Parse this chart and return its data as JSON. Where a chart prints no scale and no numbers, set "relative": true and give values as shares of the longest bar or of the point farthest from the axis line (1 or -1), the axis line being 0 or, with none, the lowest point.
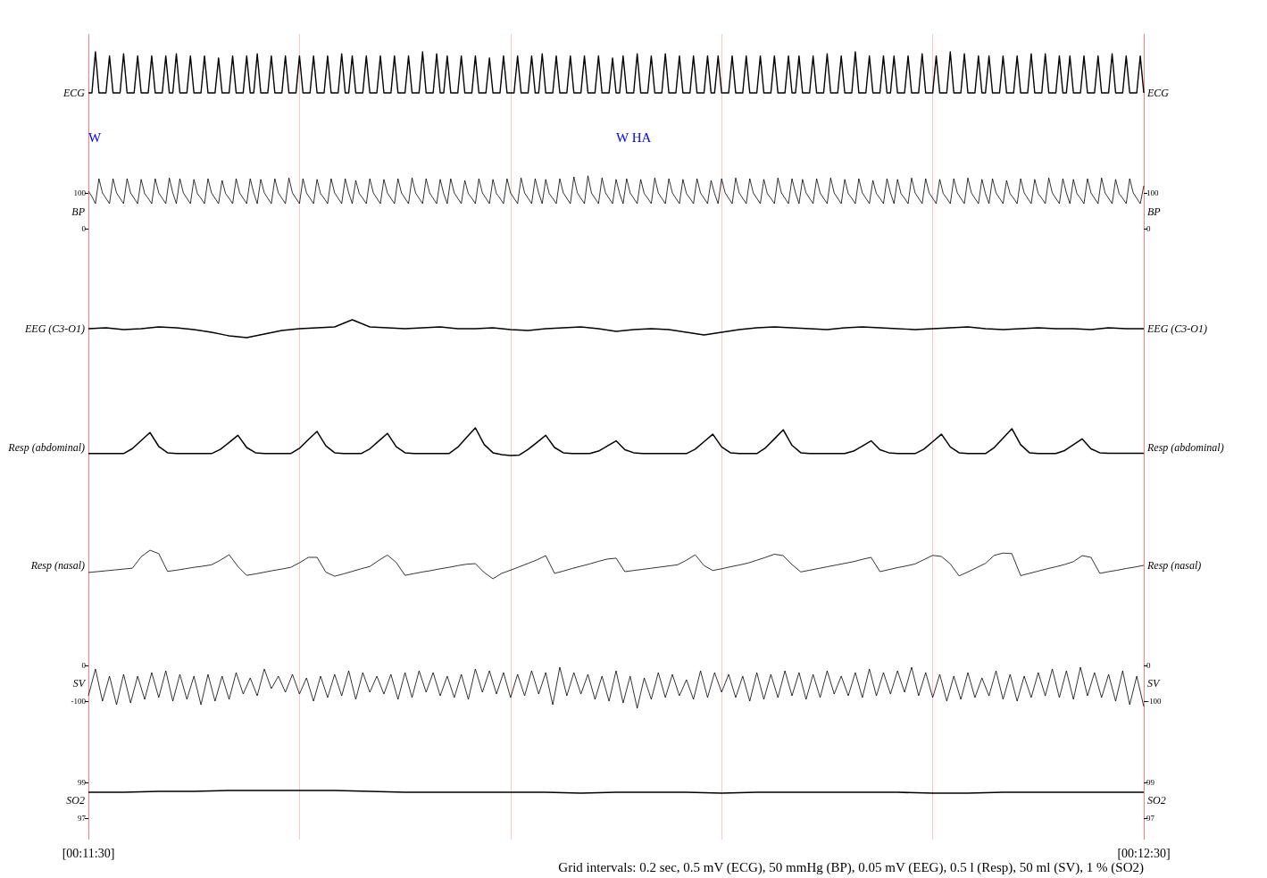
{
  "chart_data": [
    {
      "type": "line",
      "ylabel": "ECG",
      "y2label": "ECG",
      "relative": true,
      "grid": "x",
      "tick_labels": false,
      "color": "#000000",
      "categories": [
        null,
        null,
        null,
        null,
        null,
        null,
        null,
        null,
        null,
        null,
        null,
        null,
        null,
        null,
        null,
        null,
        null,
        null,
        null,
        null,
        null,
        null,
        null,
        null,
        null,
        null,
        null,
        null,
        null,
        null,
        null,
        null,
        null,
        null,
        null,
        null,
        null,
        null,
        null,
        null,
        null,
        null,
        null,
        null,
        null,
        null,
        null,
        null,
        null,
        null,
        null,
        null,
        null,
        null,
        null,
        null,
        null,
        null,
        null,
        null,
        null,
        null,
        null,
        null,
        null,
        null,
        null,
        null,
        null,
        null,
        null,
        null,
        null,
        null,
        null,
        null,
        null,
        null,
        null,
        null,
        null,
        null,
        null,
        null,
        null,
        null,
        null,
        null,
        null,
        null,
        null,
        null,
        null,
        null,
        null,
        null,
        null,
        null,
        null,
        null,
        null,
        null,
        null,
        null,
        null,
        null,
        null,
        null,
        null,
        null,
        null,
        null,
        null,
        null,
        null,
        null,
        null,
        null,
        null,
        null,
        null,
        null,
        null,
        null,
        null,
        null,
        null,
        null,
        null,
        null,
        null,
        null,
        null,
        null,
        null,
        null,
        null,
        null,
        null,
        null,
        null,
        null,
        null,
        null,
        null,
        null,
        null,
        null,
        null,
        null,
        null,
        null,
        null,
        null,
        null,
        null,
        null,
        null,
        null,
        null,
        null,
        null,
        null,
        null,
        null,
        null,
        null,
        null,
        null,
        null,
        null,
        null,
        null,
        null,
        null,
        null,
        null,
        null,
        null,
        null,
        null,
        null,
        null,
        null,
        null,
        null,
        null,
        null,
        null,
        null,
        null,
        null,
        null,
        null,
        null,
        null,
        null,
        null,
        null,
        null,
        null,
        null,
        null,
        null,
        null,
        null,
        null,
        null,
        null,
        null,
        null,
        null,
        null,
        null,
        null,
        null,
        null,
        null,
        null,
        null,
        null,
        null,
        null,
        null,
        null,
        null,
        null,
        null,
        null,
        null,
        null,
        null,
        null,
        null,
        null,
        null,
        null,
        null,
        null,
        null,
        null,
        null,
        null,
        null,
        null,
        null,
        null,
        null,
        null,
        null,
        null,
        null,
        null,
        null,
        null,
        null,
        null,
        null,
        null,
        null,
        null,
        null,
        null,
        null,
        null,
        null,
        null,
        null,
        null,
        null,
        null,
        null,
        null,
        null,
        null,
        null,
        null,
        null,
        null,
        null,
        null,
        null,
        null,
        null,
        null,
        null,
        null,
        null,
        null,
        null,
        null,
        null,
        null,
        null,
        null,
        null,
        null,
        null,
        null,
        null,
        null
      ],
      "values": [
        0,
        0,
        1,
        0,
        0,
        0,
        0.9,
        0,
        0,
        0,
        0.95,
        0,
        0,
        0,
        0.9,
        0,
        0,
        0,
        0.9,
        0,
        0,
        0,
        0.9,
        0,
        0,
        0.95,
        0,
        0,
        0,
        0.9,
        0,
        0,
        0,
        0.9,
        0,
        0,
        0,
        0.85,
        0,
        0,
        0,
        0.9,
        0,
        0,
        0,
        0.9,
        0,
        0,
        0.95,
        0,
        0,
        0,
        0.9,
        0,
        0,
        0,
        0.9,
        0,
        0,
        0,
        0.9,
        0,
        0,
        0,
        0.9,
        0,
        0,
        0,
        0.9,
        0,
        0,
        0,
        0.95,
        0,
        0,
        0.9,
        0,
        0,
        0,
        0.9,
        0,
        0,
        0,
        0.9,
        0,
        0,
        0,
        0.9,
        0,
        0,
        0,
        0.9,
        0,
        0,
        0,
        1,
        0,
        0,
        0,
        0.95,
        0,
        0,
        0.9,
        0,
        0,
        0,
        0.9,
        0,
        0,
        0,
        0.9,
        0,
        0,
        0,
        0.85,
        0,
        0,
        0,
        0.9,
        0,
        0,
        0,
        0.9,
        0,
        0,
        0,
        0.9,
        0,
        0,
        0.95,
        0,
        0,
        0,
        0.9,
        0,
        0,
        0,
        0.9,
        0,
        0,
        0,
        0.9,
        0,
        0,
        0,
        0.9,
        0,
        0,
        0,
        0.85,
        0,
        0,
        0.9,
        0,
        0,
        0,
        0.95,
        0,
        0,
        0,
        0.9,
        0,
        0,
        0,
        0.95,
        0,
        0,
        0,
        0.9,
        0,
        0,
        0,
        0.9,
        0,
        0,
        0,
        0.9,
        0,
        0,
        0.9,
        0,
        0,
        0,
        0.9,
        0,
        0,
        0,
        0.9,
        0,
        0,
        0,
        0.9,
        0,
        0,
        0,
        0.9,
        0,
        0,
        0,
        0.9,
        0,
        0,
        0.9,
        0,
        0,
        0,
        0.9,
        0,
        0,
        0,
        0.95,
        0,
        0,
        0,
        0.9,
        0,
        0,
        0,
        1,
        0,
        0,
        0,
        0.9,
        0,
        0,
        0,
        0.9,
        0,
        0,
        0.9,
        0,
        0,
        0,
        0.9,
        0,
        0,
        0,
        0.95,
        0,
        0,
        0,
        0.9,
        0,
        0,
        0,
        1,
        0,
        0,
        0,
        0.95,
        0,
        0,
        0,
        0.9,
        0,
        0,
        0.9,
        0,
        0,
        0,
        0.9,
        0,
        0,
        0,
        0.9,
        0,
        0,
        0,
        0.95,
        0,
        0,
        0,
        0.95,
        0,
        0,
        0,
        0.9,
        0,
        0,
        0.9,
        0,
        0,
        0,
        0.9,
        0,
        0,
        0,
        0.9,
        0,
        0,
        0,
        0.95,
        0,
        0,
        0,
        0.9,
        0,
        0,
        0,
        0.9,
        0
      ]
    },
    {
      "type": "line",
      "ylabel": "BP",
      "y2label": "BP",
      "grid": "x",
      "tick_labels": "y",
      "ylim": [
        -85,
        290
      ],
      "yticks": [
        0,
        100
      ],
      "y2lim": [
        -85,
        290
      ],
      "y2ticks": [
        0,
        100
      ],
      "color": "#000000",
      "annotations": [
        "W",
        "W HA"
      ],
      "categories": [
        null,
        null,
        null,
        null,
        null,
        null,
        null,
        null,
        null,
        null,
        null,
        null,
        null,
        null,
        null,
        null,
        null,
        null,
        null,
        null,
        null,
        null,
        null,
        null,
        null,
        null,
        null,
        null,
        null,
        null,
        null,
        null,
        null,
        null,
        null,
        null,
        null,
        null,
        null,
        null,
        null,
        null,
        null,
        null,
        null,
        null,
        null,
        null,
        null,
        null,
        null,
        null,
        null,
        null,
        null,
        null,
        null,
        null,
        null,
        null,
        null,
        null,
        null,
        null,
        null,
        null,
        null,
        null,
        null,
        null,
        null,
        null,
        null,
        null,
        null,
        null,
        null,
        null,
        null,
        null,
        null,
        null,
        null,
        null,
        null,
        null,
        null,
        null,
        null,
        null,
        null,
        null,
        null,
        null,
        null,
        null,
        null,
        null,
        null,
        null,
        null,
        null,
        null,
        null,
        null,
        null,
        null,
        null,
        null,
        null,
        null,
        null,
        null,
        null,
        null,
        null,
        null,
        null,
        null,
        null,
        null,
        null,
        null,
        null,
        null,
        null,
        null,
        null,
        null,
        null,
        null,
        null,
        null,
        null,
        null,
        null,
        null,
        null,
        null,
        null,
        null,
        null,
        null,
        null,
        null,
        null,
        null,
        null,
        null,
        null,
        null,
        null,
        null,
        null,
        null,
        null,
        null,
        null,
        null,
        null,
        null,
        null,
        null,
        null,
        null,
        null,
        null,
        null,
        null,
        null,
        null,
        null,
        null,
        null,
        null,
        null,
        null,
        null,
        null,
        null,
        null,
        null,
        null,
        null,
        null,
        null,
        null,
        null,
        null,
        null,
        null,
        null,
        null,
        null,
        null,
        null,
        null,
        null,
        null,
        null,
        null,
        null,
        null,
        null,
        null,
        null,
        null,
        null,
        null,
        null,
        null,
        null,
        null,
        null,
        null,
        null,
        null,
        null,
        null,
        null,
        null,
        null,
        null,
        null,
        null,
        null,
        null,
        null,
        null,
        null,
        null,
        null,
        null,
        null,
        null,
        null,
        null,
        null,
        null,
        null,
        null,
        null,
        null,
        null,
        null,
        null,
        null,
        null,
        null,
        null,
        null,
        null,
        null,
        null,
        null,
        null,
        null,
        null,
        null,
        null,
        null,
        null,
        null,
        null,
        null,
        null,
        null,
        null,
        null,
        null,
        null,
        null,
        null,
        null,
        null,
        null,
        null,
        null,
        null,
        null,
        null,
        null,
        null,
        null,
        null,
        null,
        null,
        null,
        null,
        null,
        null,
        null,
        null,
        null,
        null,
        null,
        null,
        null,
        null,
        null,
        null
      ],
      "values": [
        105,
        90,
        70,
        140,
        100,
        85,
        70,
        140,
        100,
        85,
        70,
        140,
        100,
        85,
        70,
        138,
        98,
        85,
        70,
        140,
        100,
        85,
        70,
        142,
        100,
        70,
        140,
        100,
        85,
        70,
        138,
        98,
        85,
        70,
        140,
        100,
        85,
        70,
        135,
        98,
        85,
        70,
        140,
        100,
        85,
        70,
        140,
        100,
        70,
        138,
        100,
        85,
        70,
        140,
        100,
        85,
        70,
        142,
        100,
        85,
        70,
        140,
        100,
        85,
        70,
        138,
        98,
        85,
        70,
        140,
        100,
        85,
        70,
        140,
        100,
        70,
        135,
        98,
        85,
        70,
        140,
        100,
        85,
        70,
        138,
        100,
        85,
        70,
        140,
        100,
        85,
        70,
        142,
        100,
        85,
        70,
        140,
        100,
        85,
        70,
        138,
        98,
        70,
        140,
        100,
        85,
        70,
        135,
        98,
        85,
        70,
        140,
        100,
        85,
        70,
        138,
        98,
        85,
        70,
        140,
        100,
        85,
        70,
        142,
        100,
        85,
        70,
        140,
        100,
        70,
        138,
        98,
        85,
        70,
        140,
        100,
        85,
        70,
        145,
        100,
        85,
        70,
        148,
        100,
        85,
        70,
        142,
        100,
        85,
        70,
        138,
        98,
        70,
        140,
        100,
        85,
        70,
        138,
        98,
        85,
        70,
        142,
        100,
        85,
        70,
        140,
        100,
        85,
        70,
        138,
        98,
        85,
        70,
        140,
        100,
        85,
        70,
        135,
        98,
        70,
        140,
        100,
        85,
        70,
        142,
        100,
        85,
        70,
        140,
        100,
        85,
        70,
        138,
        98,
        85,
        70,
        142,
        100,
        85,
        70,
        140,
        100,
        70,
        138,
        100,
        85,
        70,
        140,
        100,
        85,
        70,
        142,
        100,
        85,
        70,
        138,
        98,
        85,
        70,
        140,
        100,
        85,
        70,
        135,
        98,
        85,
        70,
        140,
        100,
        70,
        138,
        98,
        85,
        70,
        142,
        100,
        85,
        70,
        140,
        100,
        85,
        70,
        138,
        98,
        85,
        70,
        140,
        100,
        85,
        70,
        142,
        100,
        85,
        70,
        138,
        98,
        70,
        140,
        100,
        85,
        70,
        135,
        98,
        85,
        70,
        140,
        100,
        85,
        70,
        138,
        98,
        85,
        70,
        142,
        100,
        85,
        70,
        140,
        100,
        70,
        138,
        98,
        85,
        70,
        140,
        100,
        85,
        70,
        142,
        100,
        85,
        70,
        138,
        98,
        85,
        70,
        140,
        100,
        85,
        70,
        120
      ]
    },
    {
      "type": "line",
      "ylabel": "EEG (C3-O1)",
      "y2label": "EEG (C3-O1)",
      "relative": true,
      "grid": "x",
      "tick_labels": false,
      "color": "#000000",
      "categories": [
        null,
        null,
        null,
        null,
        null,
        null,
        null,
        null,
        null,
        null,
        null,
        null,
        null,
        null,
        null,
        null,
        null,
        null,
        null,
        null,
        null,
        null,
        null,
        null,
        null,
        null,
        null,
        null,
        null,
        null,
        null,
        null,
        null,
        null,
        null,
        null,
        null,
        null,
        null,
        null,
        null,
        null,
        null,
        null,
        null,
        null,
        null,
        null,
        null,
        null,
        null,
        null,
        null,
        null,
        null,
        null,
        null,
        null,
        null,
        null,
        null
      ],
      "values": [
        0.5,
        0.55,
        0.45,
        0.5,
        0.6,
        0.55,
        0.45,
        0.3,
        0.1,
        0,
        0.2,
        0.4,
        0.5,
        0.55,
        0.6,
        1,
        0.6,
        0.55,
        0.5,
        0.55,
        0.6,
        0.5,
        0.5,
        0.55,
        0.45,
        0.4,
        0.5,
        0.55,
        0.6,
        0.5,
        0.35,
        0.45,
        0.5,
        0.45,
        0.3,
        0.15,
        0.3,
        0.45,
        0.55,
        0.6,
        0.55,
        0.5,
        0.45,
        0.55,
        0.6,
        0.55,
        0.5,
        0.45,
        0.5,
        0.55,
        0.6,
        0.5,
        0.45,
        0.5,
        0.55,
        0.5,
        0.5,
        0.45,
        0.55,
        0.5,
        0.5
      ]
    },
    {
      "type": "line",
      "ylabel": "Resp (abdominal)",
      "y2label": "Resp (abdominal)",
      "relative": true,
      "grid": "x",
      "tick_labels": false,
      "color": "#000000",
      "categories": [
        null,
        null,
        null,
        null,
        null,
        null,
        null,
        null,
        null,
        null,
        null,
        null,
        null,
        null,
        null,
        null,
        null,
        null,
        null,
        null,
        null,
        null,
        null,
        null,
        null,
        null,
        null,
        null,
        null,
        null,
        null,
        null,
        null,
        null,
        null,
        null,
        null,
        null,
        null,
        null,
        null,
        null,
        null,
        null,
        null,
        null,
        null,
        null,
        null,
        null,
        null,
        null,
        null,
        null,
        null,
        null,
        null,
        null,
        null,
        null,
        null,
        null,
        null,
        null,
        null,
        null,
        null,
        null,
        null,
        null,
        null,
        null,
        null,
        null,
        null,
        null,
        null,
        null,
        null,
        null,
        null,
        null,
        null,
        null,
        null,
        null,
        null,
        null,
        null,
        null,
        null,
        null,
        null,
        null,
        null,
        null,
        null,
        null,
        null,
        null,
        null,
        null,
        null,
        null,
        null,
        null,
        null,
        null,
        null,
        null,
        null,
        null,
        null,
        null,
        null,
        null,
        null,
        null,
        null,
        null,
        null
      ],
      "values": [
        0.07,
        0.07,
        0.07,
        0.07,
        0.07,
        0.25,
        0.54,
        0.83,
        0.33,
        0.1,
        0.07,
        0.07,
        0.07,
        0.07,
        0.07,
        0.22,
        0.47,
        0.73,
        0.29,
        0.1,
        0.07,
        0.07,
        0.07,
        0.07,
        0.26,
        0.57,
        0.87,
        0.35,
        0.1,
        0.07,
        0.07,
        0.07,
        0.24,
        0.52,
        0.8,
        0.32,
        0.1,
        0.07,
        0.07,
        0.07,
        0.07,
        0.07,
        0.3,
        0.65,
        1,
        0.4,
        0.1,
        0.03,
        0,
        0.02,
        0.22,
        0.47,
        0.73,
        0.29,
        0.1,
        0.07,
        0.07,
        0.07,
        0.16,
        0.34,
        0.53,
        0.21,
        0.1,
        0.07,
        0.07,
        0.07,
        0.07,
        0.07,
        0.07,
        0.23,
        0.5,
        0.77,
        0.31,
        0.1,
        0.07,
        0.07,
        0.07,
        0.28,
        0.6,
        0.93,
        0.37,
        0.1,
        0.07,
        0.07,
        0.07,
        0.07,
        0.07,
        0.16,
        0.34,
        0.53,
        0.21,
        0.1,
        0.07,
        0.07,
        0.07,
        0.23,
        0.5,
        0.77,
        0.31,
        0.1,
        0.07,
        0.07,
        0.07,
        0.29,
        0.63,
        0.97,
        0.39,
        0.1,
        0.07,
        0.07,
        0.07,
        0.18,
        0.39,
        0.6,
        0.24,
        0.1,
        0.08,
        0.08,
        0.08,
        0.08,
        0.08
      ]
    },
    {
      "type": "line",
      "ylabel": "Resp (nasal)",
      "y2label": "Resp (nasal)",
      "relative": true,
      "grid": "x",
      "tick_labels": false,
      "color": "#000000",
      "categories": [
        null,
        null,
        null,
        null,
        null,
        null,
        null,
        null,
        null,
        null,
        null,
        null,
        null,
        null,
        null,
        null,
        null,
        null,
        null,
        null,
        null,
        null,
        null,
        null,
        null,
        null,
        null,
        null,
        null,
        null,
        null,
        null,
        null,
        null,
        null,
        null,
        null,
        null,
        null,
        null,
        null,
        null,
        null,
        null,
        null,
        null,
        null,
        null,
        null,
        null,
        null,
        null,
        null,
        null,
        null,
        null,
        null,
        null,
        null,
        null,
        null,
        null,
        null,
        null,
        null,
        null,
        null,
        null,
        null,
        null,
        null,
        null,
        null,
        null,
        null,
        null,
        null,
        null,
        null,
        null,
        null,
        null,
        null,
        null,
        null,
        null,
        null,
        null,
        null,
        null,
        null,
        null,
        null,
        null,
        null,
        null,
        null,
        null,
        null,
        null,
        null,
        null,
        null,
        null,
        null,
        null,
        null,
        null,
        null,
        null,
        null,
        null,
        null,
        null,
        null,
        null,
        null,
        null,
        null,
        null,
        null
      ],
      "values": [
        0.22,
        0.25,
        0.28,
        0.31,
        0.34,
        0.37,
        0.77,
        1,
        0.88,
        0.26,
        0.3,
        0.35,
        0.4,
        0.44,
        0.49,
        0.65,
        0.84,
        0.43,
        0.12,
        0.17,
        0.23,
        0.29,
        0.34,
        0.4,
        0.56,
        0.75,
        0.75,
        0.23,
        0.09,
        0.17,
        0.26,
        0.35,
        0.43,
        0.64,
        0.83,
        0.57,
        0.12,
        0.18,
        0.24,
        0.29,
        0.35,
        0.4,
        0.46,
        0.51,
        0.53,
        0.22,
        0,
        0.19,
        0.3,
        0.42,
        0.54,
        0.66,
        0.81,
        0.19,
        0.27,
        0.36,
        0.44,
        0.52,
        0.61,
        0.69,
        0.72,
        0.25,
        0.29,
        0.33,
        0.37,
        0.41,
        0.45,
        0.49,
        0.65,
        0.84,
        0.46,
        0.29,
        0.35,
        0.42,
        0.48,
        0.55,
        0.65,
        0.75,
        0.86,
        0.81,
        0.5,
        0.24,
        0.3,
        0.36,
        0.42,
        0.48,
        0.54,
        0.6,
        0.68,
        0.75,
        0.25,
        0.32,
        0.39,
        0.45,
        0.52,
        0.67,
        0.82,
        0.78,
        0.52,
        0.1,
        0.24,
        0.39,
        0.54,
        0.82,
        0.9,
        0.88,
        0.11,
        0.19,
        0.27,
        0.35,
        0.42,
        0.5,
        0.6,
        0.81,
        0.75,
        0.19,
        0.25,
        0.3,
        0.36,
        0.41,
        0.47
      ]
    },
    {
      "type": "line",
      "ylabel": "SV",
      "y2label": "SV",
      "grid": "x",
      "tick_labels": "y",
      "ylim": [
        -237.5,
        137.5
      ],
      "yticks": [
        -100,
        0
      ],
      "y2lim": [
        -237.5,
        137.5
      ],
      "y2ticks": [
        -100,
        0
      ],
      "color": "#000000",
      "categories": [
        null,
        null,
        null,
        null,
        null,
        null,
        null,
        null,
        null,
        null,
        null,
        null,
        null,
        null,
        null,
        null,
        null,
        null,
        null,
        null,
        null,
        null,
        null,
        null,
        null,
        null,
        null,
        null,
        null,
        null,
        null,
        null,
        null,
        null,
        null,
        null,
        null,
        null,
        null,
        null,
        null,
        null,
        null,
        null,
        null,
        null,
        null,
        null,
        null,
        null,
        null,
        null,
        null,
        null,
        null,
        null,
        null,
        null,
        null,
        null,
        null,
        null,
        null,
        null,
        null,
        null,
        null,
        null,
        null,
        null,
        null,
        null,
        null,
        null,
        null,
        null,
        null,
        null,
        null,
        null,
        null,
        null,
        null,
        null,
        null,
        null,
        null,
        null,
        null,
        null,
        null,
        null,
        null,
        null,
        null,
        null,
        null,
        null,
        null,
        null,
        null,
        null,
        null,
        null,
        null,
        null,
        null,
        null,
        null,
        null,
        null,
        null,
        null,
        null,
        null,
        null,
        null,
        null,
        null,
        null,
        null,
        null,
        null,
        null,
        null,
        null,
        null,
        null,
        null,
        null,
        null,
        null,
        null,
        null,
        null,
        null,
        null,
        null,
        null,
        null,
        null,
        null,
        null,
        null,
        null,
        null,
        null,
        null,
        null,
        null,
        null
      ],
      "values": [
        -85,
        -10,
        -100,
        -30,
        -110,
        -25,
        -105,
        -30,
        -95,
        -20,
        -90,
        -15,
        -100,
        -25,
        -95,
        -30,
        -110,
        -25,
        -100,
        -30,
        -95,
        -20,
        -80,
        -35,
        -85,
        -10,
        -65,
        -30,
        -75,
        -25,
        -80,
        -35,
        -100,
        -30,
        -90,
        -25,
        -85,
        -15,
        -95,
        -20,
        -75,
        -30,
        -80,
        -25,
        -95,
        -20,
        -90,
        -15,
        -75,
        -20,
        -85,
        -30,
        -90,
        -25,
        -95,
        -10,
        -75,
        -15,
        -80,
        -20,
        -90,
        -25,
        -85,
        -15,
        -80,
        -20,
        -110,
        -5,
        -85,
        -20,
        -80,
        -25,
        -95,
        -30,
        -100,
        -15,
        -105,
        -30,
        -120,
        -35,
        -95,
        -20,
        -90,
        -25,
        -85,
        -40,
        -95,
        -15,
        -90,
        -20,
        -75,
        -25,
        -90,
        -30,
        -100,
        -20,
        -95,
        -25,
        -90,
        -15,
        -85,
        -20,
        -95,
        -25,
        -90,
        -15,
        -80,
        -30,
        -85,
        -20,
        -90,
        -10,
        -85,
        -20,
        -80,
        -15,
        -75,
        -5,
        -85,
        -20,
        -90,
        -25,
        -100,
        -30,
        -95,
        -20,
        -90,
        -35,
        -85,
        -15,
        -95,
        -25,
        -100,
        -30,
        -90,
        -20,
        -85,
        -10,
        -90,
        -15,
        -95,
        -5,
        -85,
        -20,
        -90,
        -25,
        -100,
        -15,
        -110,
        -30,
        -115
      ]
    },
    {
      "type": "line",
      "ylabel": "SO2",
      "y2label": "SO2",
      "grid": "x",
      "ylim": [
        95.8,
        100.8
      ],
      "yticks": [
        97,
        99
      ],
      "y2lim": [
        95.8,
        100.8
      ],
      "y2ticks": [
        97,
        99
      ],
      "color": "#000000",
      "annotations": [
        "Grid intervals: 0.2 sec, 0.5 mV (ECG), 50 mmHg (BP), 0.05 mV (EEG), 0.5 l (Resp), 50 ml (SV), 1 % (SO2)"
      ],
      "categories": [
        "[00:11:30]",
        null,
        null,
        null,
        null,
        null,
        null,
        null,
        null,
        null,
        null,
        null,
        null,
        null,
        null,
        null,
        null,
        null,
        null,
        null,
        null,
        null,
        null,
        null,
        null,
        null,
        null,
        null,
        null,
        null,
        "[00:12:30]"
      ],
      "values": [
        98.45,
        98.45,
        98.5,
        98.5,
        98.55,
        98.55,
        98.55,
        98.55,
        98.5,
        98.45,
        98.45,
        98.45,
        98.45,
        98.45,
        98.4,
        98.45,
        98.45,
        98.45,
        98.4,
        98.45,
        98.45,
        98.45,
        98.45,
        98.45,
        98.4,
        98.4,
        98.45,
        98.45,
        98.45,
        98.45,
        98.45
      ]
    }
  ]
}
